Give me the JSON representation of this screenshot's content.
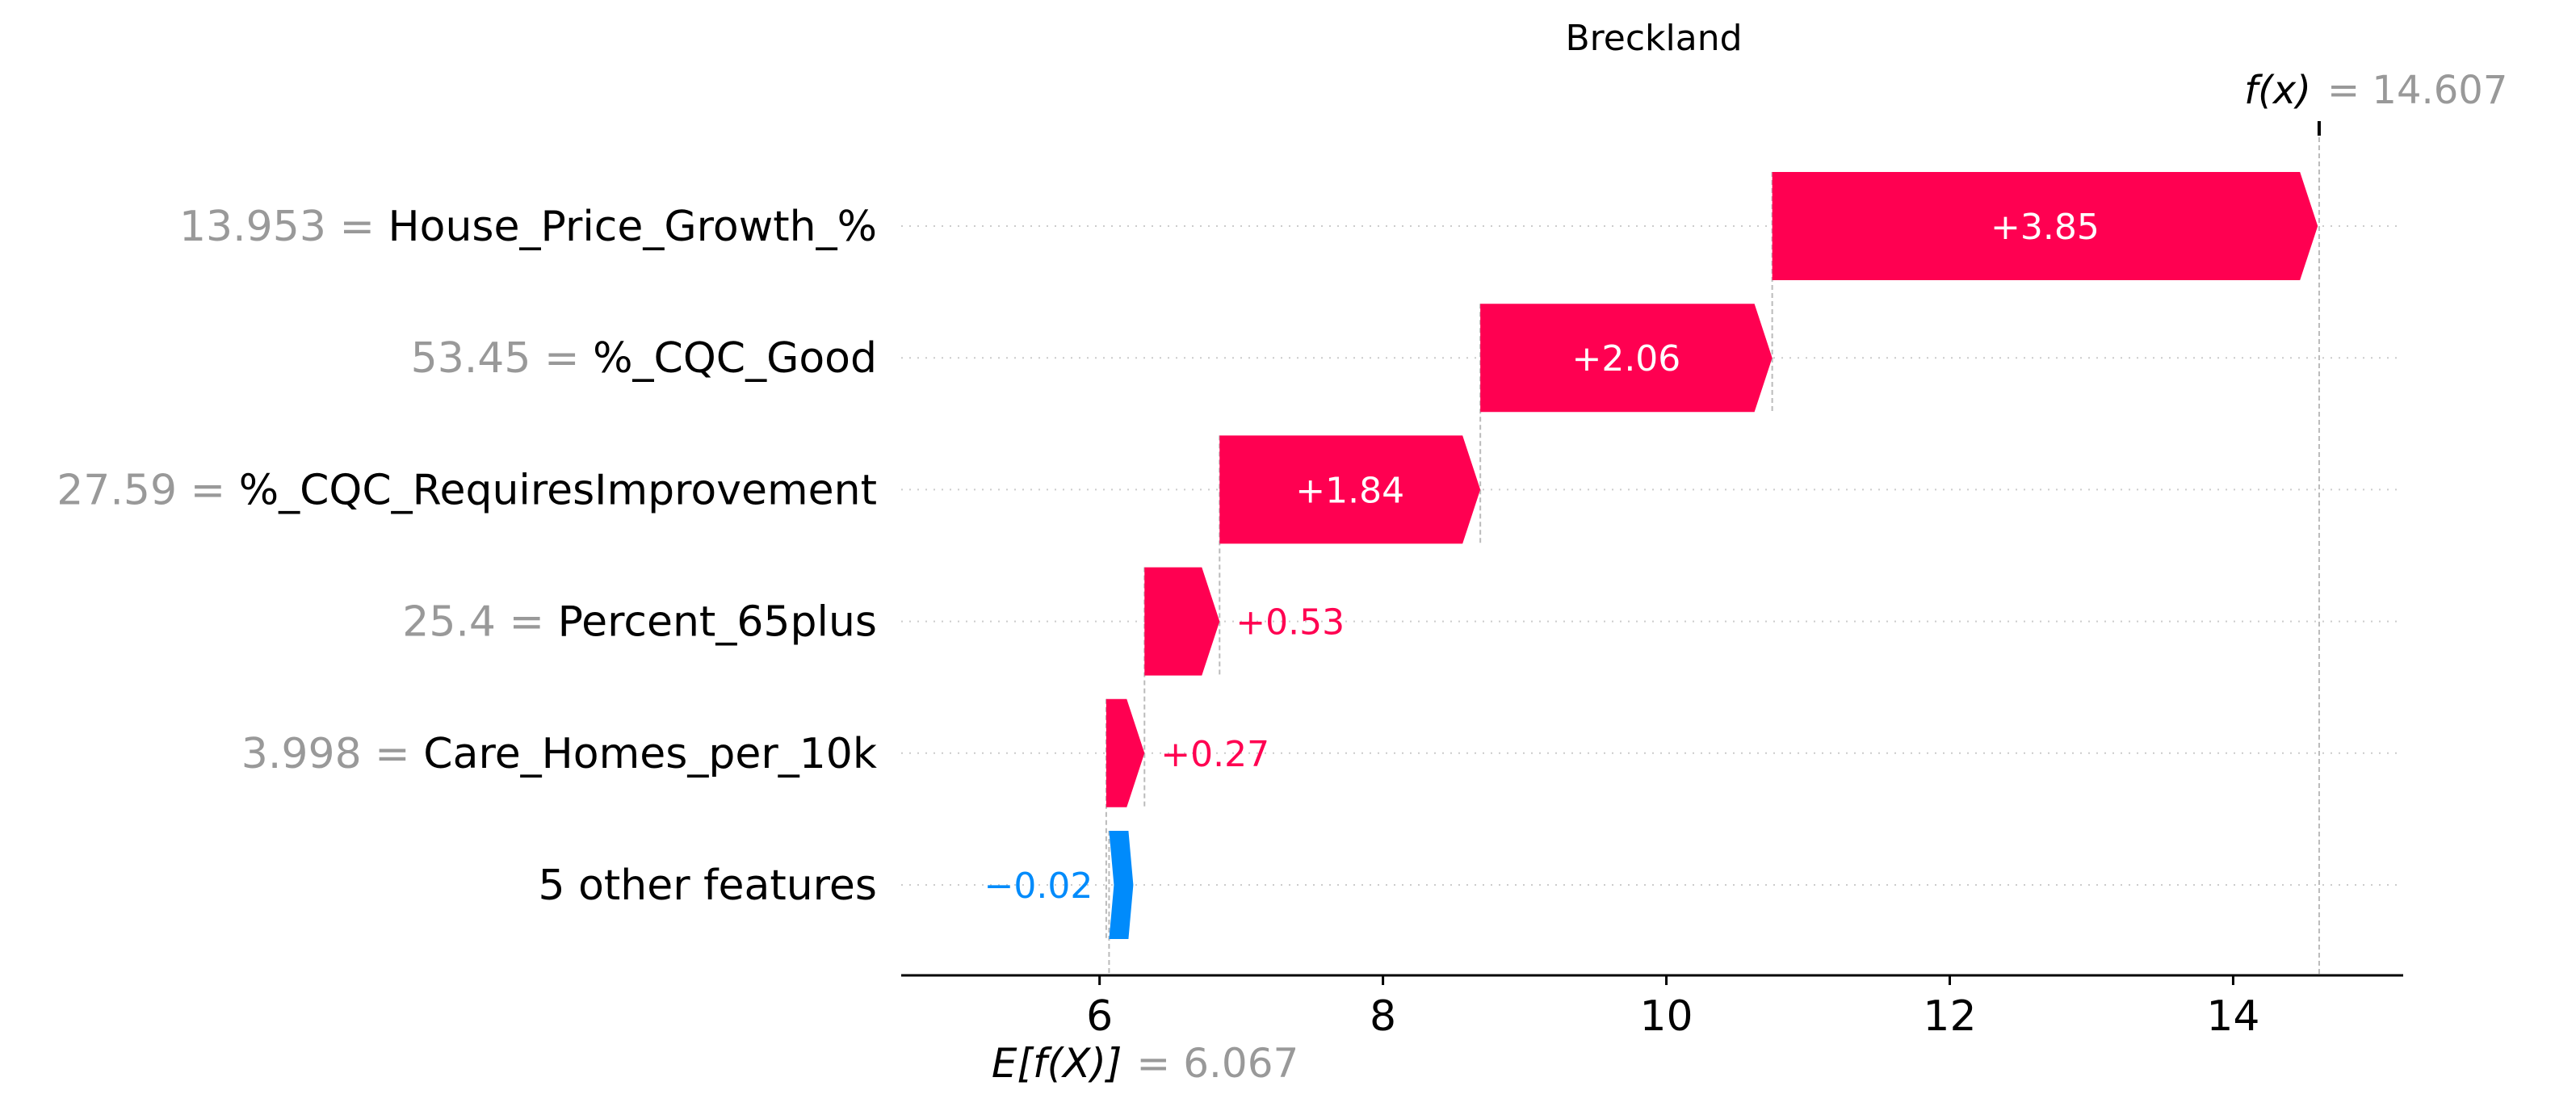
{
  "chart_data": {
    "type": "waterfall",
    "title": "Breckland",
    "xlabel": "",
    "ylabel": "",
    "xlim": [
      4.6,
      15.2
    ],
    "xticks": [
      6,
      8,
      10,
      12,
      14
    ],
    "base_value": 6.067,
    "base_label": "E[f(X)]",
    "base_value_text": "= 6.067",
    "output_value": 14.607,
    "output_label": "f(x)",
    "output_value_text": "= 14.607",
    "rows": [
      {
        "feature_value": "13.953 =",
        "feature": "House_Price_Growth_%",
        "contribution": 3.85,
        "label": "+3.85"
      },
      {
        "feature_value": "53.45 =",
        "feature": "%_CQC_Good",
        "contribution": 2.06,
        "label": "+2.06"
      },
      {
        "feature_value": "27.59 =",
        "feature": "%_CQC_RequiresImprovement",
        "contribution": 1.84,
        "label": "+1.84"
      },
      {
        "feature_value": "25.4 =",
        "feature": "Percent_65plus",
        "contribution": 0.53,
        "label": "+0.53"
      },
      {
        "feature_value": "3.998 =",
        "feature": "Care_Homes_per_10k",
        "contribution": 0.27,
        "label": "+0.27"
      },
      {
        "feature_value": "",
        "feature": "5 other features",
        "contribution": -0.02,
        "label": "−0.02"
      }
    ],
    "colors": {
      "positive": "#ff0051",
      "negative": "#008bfb",
      "value_gray": "#999999",
      "text": "#000000",
      "grid": "#cccccc"
    },
    "grid": true
  }
}
